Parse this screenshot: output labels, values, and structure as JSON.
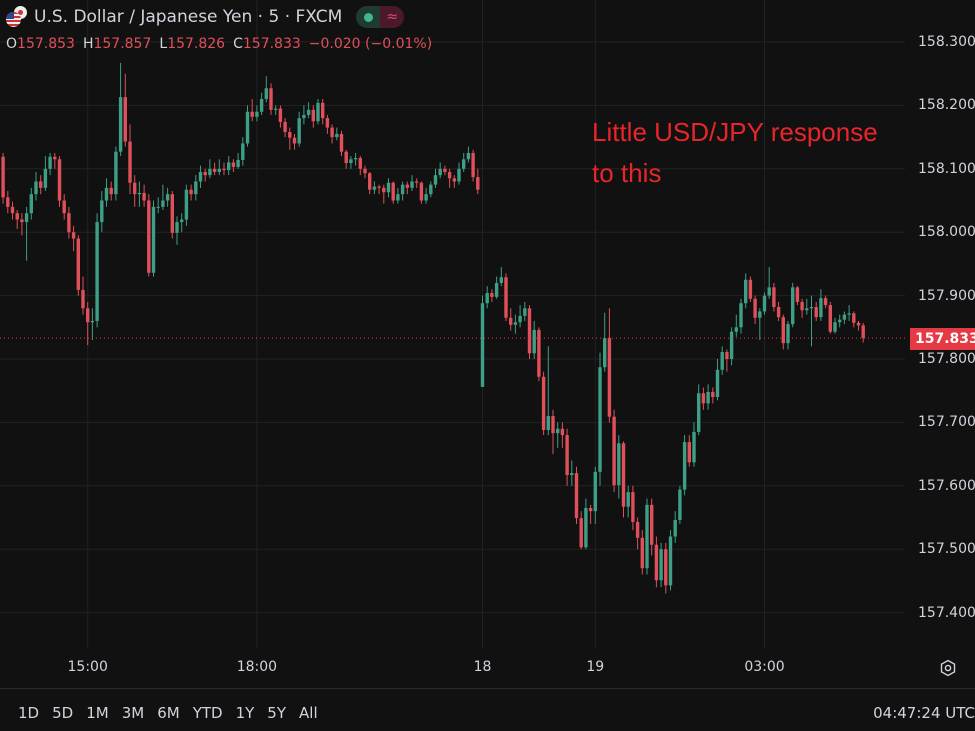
{
  "header": {
    "title": "U.S. Dollar / Japanese Yen · 5 · FXCM",
    "icons": [
      "us-japan-flag-icon",
      "market-open-dot-icon",
      "wave-icon"
    ],
    "ohlc": {
      "o_label": "O",
      "o": "157.853",
      "h_label": "H",
      "h": "157.857",
      "l_label": "L",
      "l": "157.826",
      "c_label": "C",
      "c": "157.833",
      "change": "−0.020 (−0.01%)"
    }
  },
  "annotation": "Little USD/JPY response\nto this",
  "price_axis": {
    "last_price": "157.833"
  },
  "bottom_bar": {
    "ranges": [
      "1D",
      "5D",
      "1M",
      "3M",
      "6M",
      "YTD",
      "1Y",
      "5Y",
      "All"
    ],
    "clock": "04:47:24 UTC"
  },
  "colors": {
    "up": "#3d9f86",
    "down": "#e0505a",
    "background": "#111111",
    "grid": "#222222",
    "annotation": "#e8262a",
    "last_price": "#e53944"
  },
  "chart_data": {
    "type": "candlestick",
    "interval": "5",
    "ylim": [
      157.35,
      158.35
    ],
    "yticks": [
      "158.300",
      "158.200",
      "158.100",
      "158.000",
      "157.900",
      "157.800",
      "157.700",
      "157.600",
      "157.500",
      "157.400"
    ],
    "xticks": [
      {
        "bar": 18,
        "label": "15:00"
      },
      {
        "bar": 54,
        "label": "18:00"
      },
      {
        "bar": 102,
        "label": "18"
      },
      {
        "bar": 126,
        "label": "19"
      },
      {
        "bar": 162,
        "label": "03:00"
      }
    ],
    "grid": true,
    "last_price": 157.833,
    "ohlc": [
      [
        158.119,
        158.125,
        158.045,
        158.055
      ],
      [
        158.055,
        158.065,
        158.03,
        158.04
      ],
      [
        158.04,
        158.048,
        158.02,
        158.03
      ],
      [
        158.03,
        158.035,
        158.005,
        158.02
      ],
      [
        158.02,
        158.03,
        157.995,
        158.016
      ],
      [
        158.016,
        158.04,
        157.955,
        158.03
      ],
      [
        158.03,
        158.07,
        158.02,
        158.06
      ],
      [
        158.06,
        158.095,
        158.05,
        158.08
      ],
      [
        158.08,
        158.09,
        158.06,
        158.07
      ],
      [
        158.07,
        158.12,
        158.065,
        158.1
      ],
      [
        158.1,
        158.125,
        158.09,
        158.119
      ],
      [
        158.119,
        158.125,
        158.1,
        158.115
      ],
      [
        158.115,
        158.12,
        158.04,
        158.05
      ],
      [
        158.05,
        158.06,
        158.02,
        158.03
      ],
      [
        158.03,
        158.04,
        157.99,
        158.0
      ],
      [
        158.0,
        158.01,
        157.97,
        157.99
      ],
      [
        157.99,
        157.995,
        157.9,
        157.909
      ],
      [
        157.909,
        157.93,
        157.87,
        157.88
      ],
      [
        157.88,
        157.89,
        157.822,
        157.858
      ],
      [
        157.858,
        157.88,
        157.83,
        157.86
      ],
      [
        157.86,
        158.03,
        157.85,
        158.016
      ],
      [
        158.016,
        158.065,
        158.0,
        158.05
      ],
      [
        158.05,
        158.085,
        158.04,
        158.07
      ],
      [
        158.07,
        158.08,
        158.05,
        158.06
      ],
      [
        158.06,
        158.135,
        158.05,
        158.127
      ],
      [
        158.127,
        158.267,
        158.12,
        158.213
      ],
      [
        158.213,
        158.25,
        158.135,
        158.143
      ],
      [
        158.143,
        158.17,
        158.06,
        158.078
      ],
      [
        158.078,
        158.09,
        158.04,
        158.06
      ],
      [
        158.06,
        158.08,
        158.04,
        158.062
      ],
      [
        158.062,
        158.075,
        158.04,
        158.05
      ],
      [
        158.05,
        158.06,
        157.93,
        157.936
      ],
      [
        157.936,
        158.05,
        157.93,
        158.04
      ],
      [
        158.04,
        158.055,
        158.03,
        158.04
      ],
      [
        158.04,
        158.075,
        158.035,
        158.05
      ],
      [
        158.05,
        158.07,
        158.04,
        158.06
      ],
      [
        158.06,
        158.065,
        157.99,
        157.999
      ],
      [
        157.999,
        158.025,
        157.98,
        158.016
      ],
      [
        158.016,
        158.03,
        158.0,
        158.02
      ],
      [
        158.02,
        158.075,
        158.01,
        158.067
      ],
      [
        158.067,
        158.075,
        158.05,
        158.06
      ],
      [
        158.06,
        158.09,
        158.05,
        158.08
      ],
      [
        158.08,
        158.105,
        158.07,
        158.095
      ],
      [
        158.095,
        158.1,
        158.08,
        158.09
      ],
      [
        158.09,
        158.115,
        158.085,
        158.1
      ],
      [
        158.1,
        158.11,
        158.09,
        158.095
      ],
      [
        158.095,
        158.115,
        158.09,
        158.1
      ],
      [
        158.1,
        158.11,
        158.09,
        158.098
      ],
      [
        158.098,
        158.12,
        158.09,
        158.11
      ],
      [
        158.11,
        158.115,
        158.095,
        158.103
      ],
      [
        158.103,
        158.125,
        158.1,
        158.114
      ],
      [
        158.114,
        158.15,
        158.105,
        158.14
      ],
      [
        158.14,
        158.2,
        158.135,
        158.19
      ],
      [
        158.19,
        158.21,
        158.175,
        158.182
      ],
      [
        158.182,
        158.2,
        158.175,
        158.19
      ],
      [
        158.19,
        158.22,
        158.185,
        158.21
      ],
      [
        158.21,
        158.246,
        158.205,
        158.227
      ],
      [
        158.227,
        158.235,
        158.185,
        158.193
      ],
      [
        158.193,
        158.2,
        158.185,
        158.195
      ],
      [
        158.195,
        158.2,
        158.165,
        158.174
      ],
      [
        158.174,
        158.18,
        158.15,
        158.158
      ],
      [
        158.158,
        158.165,
        158.13,
        158.149
      ],
      [
        158.149,
        158.155,
        158.13,
        158.14
      ],
      [
        158.14,
        158.19,
        158.135,
        158.18
      ],
      [
        158.18,
        158.2,
        158.17,
        158.185
      ],
      [
        158.185,
        158.205,
        158.18,
        158.193
      ],
      [
        158.193,
        158.2,
        158.165,
        158.175
      ],
      [
        158.175,
        158.21,
        158.17,
        158.204
      ],
      [
        158.204,
        158.21,
        158.17,
        158.18
      ],
      [
        158.18,
        158.185,
        158.155,
        158.165
      ],
      [
        158.165,
        158.17,
        158.14,
        158.15
      ],
      [
        158.15,
        158.165,
        158.145,
        158.155
      ],
      [
        158.155,
        158.16,
        158.12,
        158.127
      ],
      [
        158.127,
        158.13,
        158.1,
        158.109
      ],
      [
        158.109,
        158.12,
        158.1,
        158.115
      ],
      [
        158.115,
        158.125,
        158.105,
        158.117
      ],
      [
        158.117,
        158.12,
        158.09,
        158.1
      ],
      [
        158.1,
        158.105,
        158.085,
        158.093
      ],
      [
        158.093,
        158.095,
        158.06,
        158.067
      ],
      [
        158.067,
        158.08,
        158.06,
        158.072
      ],
      [
        158.072,
        158.075,
        158.06,
        158.07
      ],
      [
        158.07,
        158.075,
        158.045,
        158.063
      ],
      [
        158.063,
        158.085,
        158.055,
        158.078
      ],
      [
        158.078,
        158.08,
        158.045,
        158.05
      ],
      [
        158.05,
        158.07,
        158.045,
        158.06
      ],
      [
        158.06,
        158.08,
        158.05,
        158.075
      ],
      [
        158.075,
        158.08,
        158.06,
        158.07
      ],
      [
        158.07,
        158.09,
        158.065,
        158.08
      ],
      [
        158.08,
        158.085,
        158.07,
        158.078
      ],
      [
        158.078,
        158.08,
        158.045,
        158.05
      ],
      [
        158.05,
        158.07,
        158.045,
        158.06
      ],
      [
        158.06,
        158.08,
        158.055,
        158.075
      ],
      [
        158.075,
        158.1,
        158.07,
        158.09
      ],
      [
        158.09,
        158.11,
        158.085,
        158.1
      ],
      [
        158.1,
        158.105,
        158.09,
        158.095
      ],
      [
        158.095,
        158.1,
        158.07,
        158.085
      ],
      [
        158.085,
        158.09,
        158.07,
        158.08
      ],
      [
        158.08,
        158.11,
        158.075,
        158.1
      ],
      [
        158.1,
        158.125,
        158.095,
        158.115
      ],
      [
        158.115,
        158.135,
        158.11,
        158.125
      ],
      [
        158.125,
        158.13,
        158.08,
        158.087
      ],
      [
        158.087,
        158.1,
        158.06,
        158.067
      ],
      [
        157.756,
        157.9,
        157.756,
        157.888
      ],
      [
        157.888,
        157.915,
        157.88,
        157.904
      ],
      [
        157.904,
        157.91,
        157.89,
        157.898
      ],
      [
        157.898,
        157.93,
        157.895,
        157.92
      ],
      [
        157.92,
        157.945,
        157.915,
        157.929
      ],
      [
        157.929,
        157.935,
        157.86,
        157.865
      ],
      [
        157.865,
        157.88,
        157.845,
        157.854
      ],
      [
        157.854,
        157.87,
        157.84,
        157.858
      ],
      [
        157.858,
        157.885,
        157.85,
        157.868
      ],
      [
        157.868,
        157.89,
        157.86,
        157.88
      ],
      [
        157.88,
        157.885,
        157.8,
        157.809
      ],
      [
        157.809,
        157.86,
        157.8,
        157.846
      ],
      [
        157.846,
        157.85,
        157.765,
        157.772
      ],
      [
        157.772,
        157.78,
        157.68,
        157.688
      ],
      [
        157.688,
        157.82,
        157.68,
        157.71
      ],
      [
        157.71,
        157.72,
        157.65,
        157.683
      ],
      [
        157.683,
        157.7,
        157.66,
        157.69
      ],
      [
        157.69,
        157.7,
        157.66,
        157.68
      ],
      [
        157.68,
        157.69,
        157.6,
        157.617
      ],
      [
        157.617,
        157.64,
        157.6,
        157.62
      ],
      [
        157.62,
        157.63,
        157.54,
        157.549
      ],
      [
        157.549,
        157.56,
        157.5,
        157.503
      ],
      [
        157.503,
        157.58,
        157.5,
        157.565
      ],
      [
        157.565,
        157.57,
        157.54,
        157.56
      ],
      [
        157.56,
        157.63,
        157.54,
        157.622
      ],
      [
        157.622,
        157.81,
        157.6,
        157.787
      ],
      [
        157.787,
        157.873,
        157.78,
        157.833
      ],
      [
        157.833,
        157.88,
        157.7,
        157.709
      ],
      [
        157.709,
        157.72,
        157.59,
        157.601
      ],
      [
        157.601,
        157.68,
        157.58,
        157.667
      ],
      [
        157.667,
        157.67,
        157.55,
        157.567
      ],
      [
        157.567,
        157.6,
        157.55,
        157.59
      ],
      [
        157.59,
        157.6,
        157.53,
        157.543
      ],
      [
        157.543,
        157.55,
        157.5,
        157.518
      ],
      [
        157.518,
        157.53,
        157.46,
        157.47
      ],
      [
        157.47,
        157.58,
        157.46,
        157.57
      ],
      [
        157.57,
        157.58,
        157.49,
        157.507
      ],
      [
        157.507,
        157.52,
        157.44,
        157.451
      ],
      [
        157.451,
        157.51,
        157.44,
        157.5
      ],
      [
        157.5,
        157.51,
        157.43,
        157.443
      ],
      [
        157.443,
        157.53,
        157.435,
        157.52
      ],
      [
        157.52,
        157.56,
        157.51,
        157.546
      ],
      [
        157.546,
        157.6,
        157.54,
        157.594
      ],
      [
        157.594,
        157.68,
        157.585,
        157.669
      ],
      [
        157.669,
        157.68,
        157.63,
        157.637
      ],
      [
        157.637,
        157.7,
        157.63,
        157.685
      ],
      [
        157.685,
        157.76,
        157.68,
        157.746
      ],
      [
        157.746,
        157.755,
        157.72,
        157.73
      ],
      [
        157.73,
        157.76,
        157.72,
        157.748
      ],
      [
        157.748,
        157.755,
        157.73,
        157.74
      ],
      [
        157.74,
        157.8,
        157.735,
        157.783
      ],
      [
        157.783,
        157.82,
        157.775,
        157.811
      ],
      [
        157.811,
        157.815,
        157.78,
        157.8
      ],
      [
        157.8,
        157.85,
        157.79,
        157.843
      ],
      [
        157.843,
        157.87,
        157.835,
        157.85
      ],
      [
        157.85,
        157.895,
        157.84,
        157.888
      ],
      [
        157.888,
        157.935,
        157.88,
        157.925
      ],
      [
        157.925,
        157.93,
        157.89,
        157.895
      ],
      [
        157.895,
        157.9,
        157.855,
        157.865
      ],
      [
        157.865,
        157.88,
        157.83,
        157.875
      ],
      [
        157.875,
        157.905,
        157.87,
        157.9
      ],
      [
        157.9,
        157.945,
        157.895,
        157.913
      ],
      [
        157.913,
        157.92,
        157.875,
        157.882
      ],
      [
        157.882,
        157.89,
        157.86,
        157.866
      ],
      [
        157.866,
        157.87,
        157.815,
        157.825
      ],
      [
        157.825,
        157.86,
        157.815,
        157.855
      ],
      [
        157.855,
        157.92,
        157.85,
        157.913
      ],
      [
        157.913,
        157.915,
        157.885,
        157.89
      ],
      [
        157.89,
        157.895,
        157.865,
        157.877
      ],
      [
        157.877,
        157.895,
        157.87,
        157.88
      ],
      [
        157.88,
        157.9,
        157.82,
        157.882
      ],
      [
        157.882,
        157.89,
        157.86,
        157.866
      ],
      [
        157.866,
        157.91,
        157.86,
        157.896
      ],
      [
        157.896,
        157.9,
        157.88,
        157.885
      ],
      [
        157.885,
        157.89,
        157.84,
        157.843
      ],
      [
        157.843,
        157.865,
        157.84,
        157.858
      ],
      [
        157.858,
        157.87,
        157.85,
        157.862
      ],
      [
        157.862,
        157.875,
        157.855,
        157.87
      ],
      [
        157.87,
        157.885,
        157.86,
        157.872
      ],
      [
        157.872,
        157.875,
        157.85,
        157.857
      ],
      [
        157.857,
        157.86,
        157.845,
        157.853
      ],
      [
        157.853,
        157.857,
        157.826,
        157.833
      ]
    ]
  }
}
